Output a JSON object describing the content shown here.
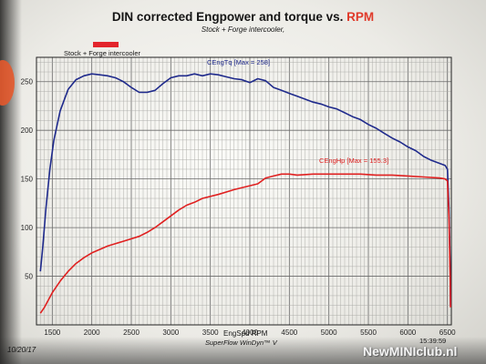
{
  "title_main": "DIN corrected Engpower and torque vs.",
  "title_rpm": "RPM",
  "subtitle": "Stock + Forge intercooler,",
  "legend_label": "Stock + Forge intercooler",
  "xlabel": "EngSpd RPM",
  "footer": "SuperFlow WinDyn™ V",
  "date": "10/20/17",
  "time": "15:39:59",
  "watermark": "NewMINIclub.nl",
  "colors": {
    "torque": "#1f2a8c",
    "power": "#e02020",
    "legend_swatch": "#e3252c"
  },
  "chart_data": {
    "type": "line",
    "xlim": [
      1300,
      6550
    ],
    "ylim": [
      0,
      275
    ],
    "x_ticks": [
      1500,
      2000,
      2500,
      3000,
      3500,
      4000,
      4500,
      5000,
      5500,
      6000,
      6500
    ],
    "y_ticks": [
      50,
      100,
      150,
      200,
      250
    ],
    "grid": true,
    "series": [
      {
        "name": "CEngTq",
        "annotation": "CEngTq [Max = 258]",
        "color": "#1f2a8c",
        "x": [
          1350,
          1380,
          1420,
          1470,
          1520,
          1600,
          1700,
          1800,
          1900,
          2000,
          2100,
          2200,
          2300,
          2400,
          2500,
          2600,
          2700,
          2800,
          2900,
          3000,
          3100,
          3200,
          3300,
          3400,
          3500,
          3600,
          3700,
          3800,
          3900,
          4000,
          4100,
          4200,
          4300,
          4400,
          4500,
          4600,
          4700,
          4800,
          4900,
          5000,
          5100,
          5200,
          5300,
          5400,
          5500,
          5600,
          5700,
          5800,
          5900,
          6000,
          6100,
          6200,
          6300,
          6400,
          6470,
          6500,
          6520,
          6535,
          6540
        ],
        "y": [
          55,
          80,
          120,
          160,
          190,
          220,
          242,
          252,
          256,
          258,
          257,
          256,
          254,
          250,
          244,
          239,
          239,
          241,
          248,
          254,
          256,
          256,
          258,
          256,
          258,
          257,
          255,
          253,
          252,
          249,
          253,
          251,
          244,
          241,
          238,
          235,
          232,
          229,
          227,
          224,
          222,
          218,
          214,
          211,
          206,
          202,
          197,
          192,
          188,
          183,
          179,
          173,
          169,
          166,
          164,
          160,
          120,
          60,
          20
        ]
      },
      {
        "name": "CEngHp",
        "annotation": "CEngHp [Max = 155.3]",
        "color": "#e02020",
        "x": [
          1350,
          1400,
          1500,
          1600,
          1700,
          1800,
          1900,
          2000,
          2200,
          2400,
          2600,
          2700,
          2800,
          2900,
          3000,
          3100,
          3200,
          3300,
          3400,
          3600,
          3800,
          4000,
          4100,
          4200,
          4300,
          4400,
          4500,
          4600,
          4800,
          5000,
          5200,
          5400,
          5600,
          5800,
          6000,
          6200,
          6400,
          6470,
          6500,
          6520,
          6535,
          6540
        ],
        "y": [
          12,
          18,
          33,
          45,
          55,
          63,
          69,
          74,
          81,
          86,
          91,
          95,
          100,
          106,
          112,
          118,
          123,
          126,
          130,
          134,
          139,
          143,
          145,
          151,
          153,
          155,
          155,
          154,
          155,
          155,
          155,
          155,
          154,
          154,
          153,
          152,
          151,
          150,
          148,
          110,
          50,
          18
        ]
      }
    ]
  }
}
